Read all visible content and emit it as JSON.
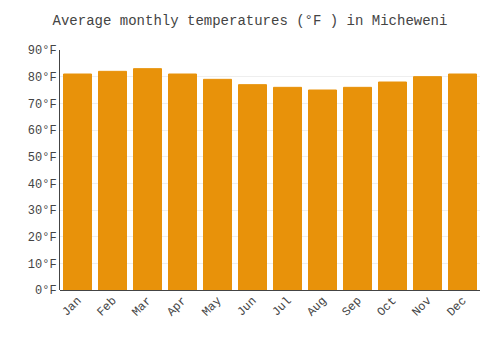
{
  "chart_data": {
    "type": "bar",
    "title": "Average monthly temperatures (°F ) in Micheweni",
    "categories": [
      "Jan",
      "Feb",
      "Mar",
      "Apr",
      "May",
      "Jun",
      "Jul",
      "Aug",
      "Sep",
      "Oct",
      "Nov",
      "Dec"
    ],
    "values": [
      81,
      82,
      83,
      81,
      79,
      77,
      76,
      75,
      76,
      78,
      80,
      81
    ],
    "color": "#E8920A",
    "ylim": [
      0,
      90
    ],
    "yticks": [
      {
        "value": 0,
        "label": "0°F"
      },
      {
        "value": 10,
        "label": "10°F"
      },
      {
        "value": 20,
        "label": "20°F"
      },
      {
        "value": 30,
        "label": "30°F"
      },
      {
        "value": 40,
        "label": "40°F"
      },
      {
        "value": 50,
        "label": "50°F"
      },
      {
        "value": 60,
        "label": "60°F"
      },
      {
        "value": 70,
        "label": "70°F"
      },
      {
        "value": 80,
        "label": "80°F"
      },
      {
        "value": 90,
        "label": "90°F"
      }
    ],
    "grid": true
  }
}
